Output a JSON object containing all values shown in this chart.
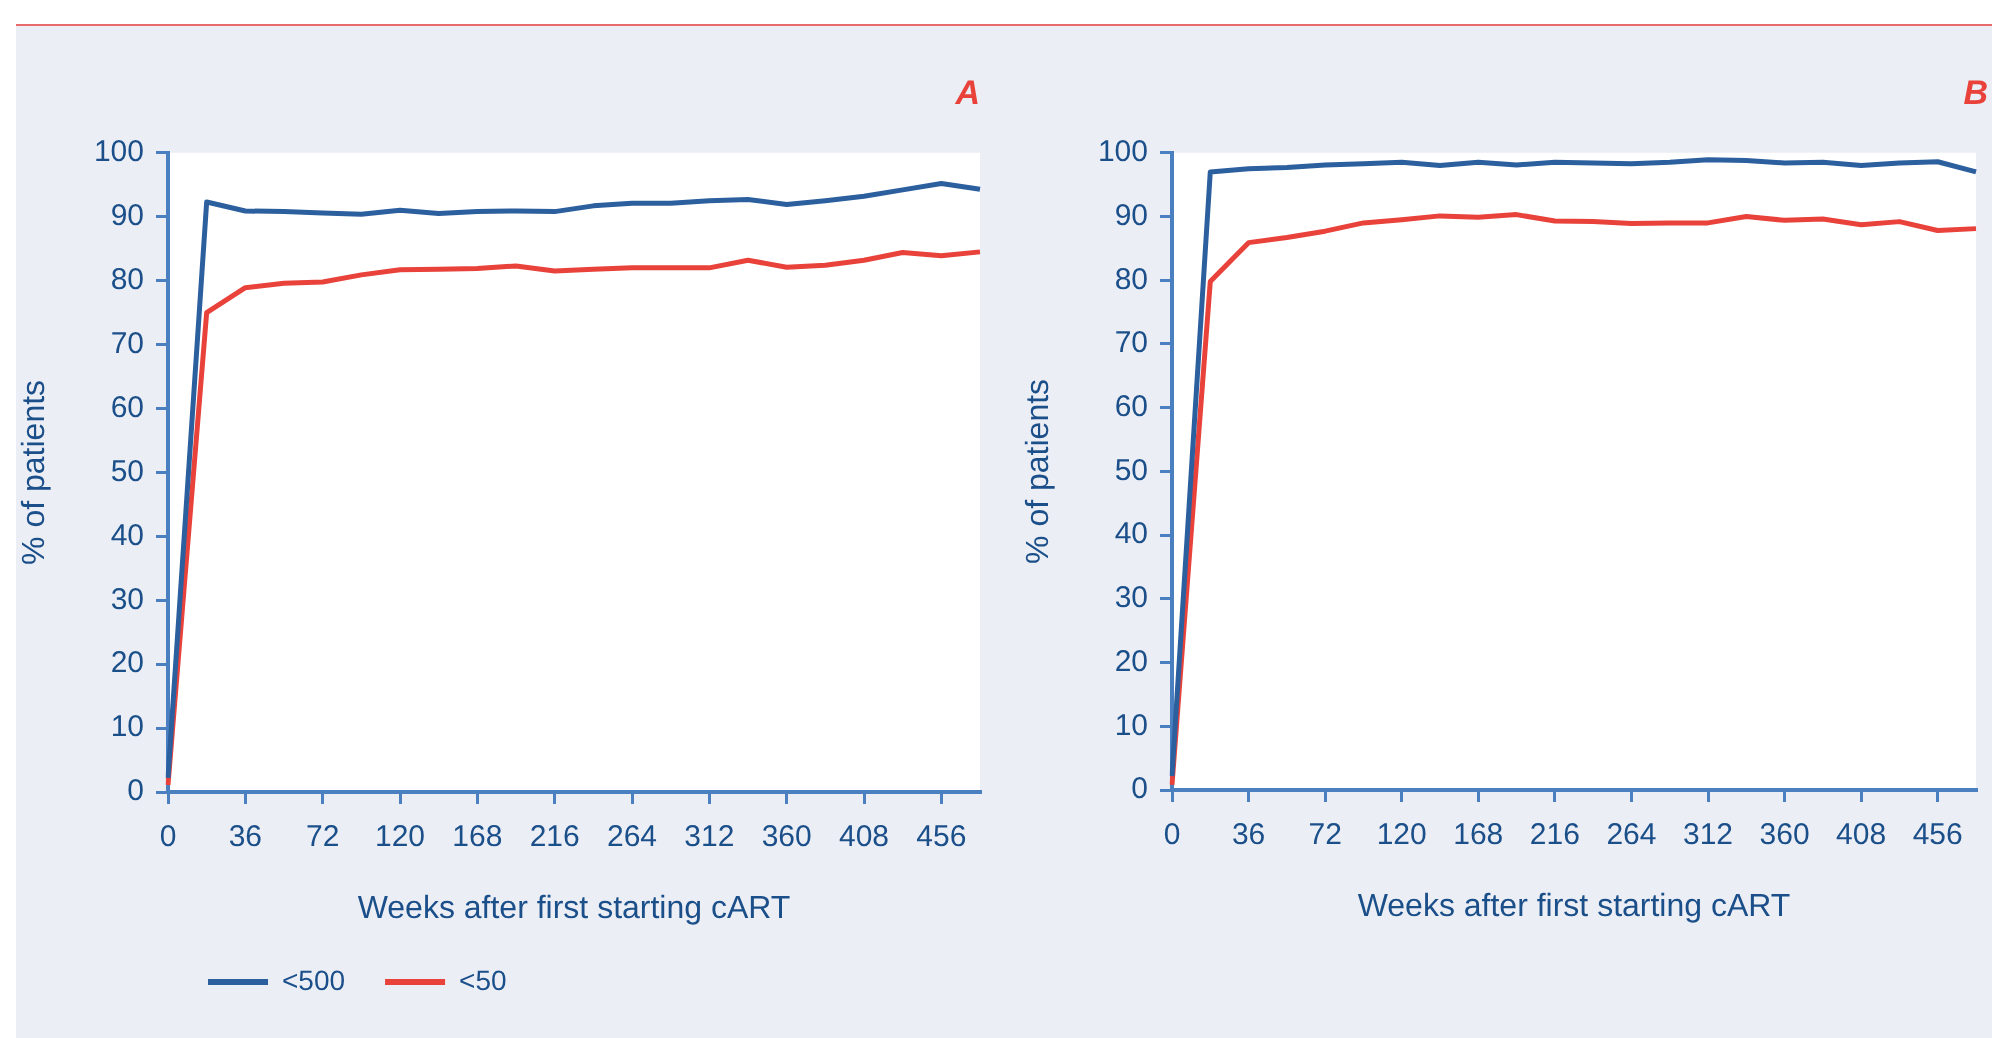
{
  "chart_data": [
    {
      "type": "line",
      "title": "A",
      "xlabel": "Weeks after first starting cART",
      "ylabel": "% of patients",
      "categories": [
        "0",
        null,
        "36",
        null,
        "72",
        null,
        "120",
        null,
        "168",
        null,
        "216",
        null,
        "264",
        null,
        "312",
        null,
        "360",
        null,
        "408",
        null,
        "456",
        null
      ],
      "series": [
        {
          "name": "<500",
          "color": "#2c5f9e",
          "values": [
            2.2,
            92.3,
            90.9,
            90.8,
            90.6,
            90.4,
            91.0,
            90.5,
            90.8,
            90.9,
            90.8,
            91.7,
            92.1,
            92.1,
            92.5,
            92.7,
            91.9,
            92.5,
            93.2,
            94.2,
            95.2,
            94.3
          ]
        },
        {
          "name": "<50",
          "color": "#e8423b",
          "values": [
            1.1,
            75.0,
            78.9,
            79.6,
            79.8,
            80.9,
            81.7,
            81.8,
            81.9,
            82.3,
            81.5,
            81.8,
            82.0,
            82.0,
            82.0,
            83.2,
            82.1,
            82.4,
            83.2,
            84.4,
            83.9,
            84.5
          ]
        }
      ],
      "ylim": [
        0,
        100
      ],
      "yticks": [
        0,
        10,
        20,
        30,
        40,
        50,
        60,
        70,
        80,
        90,
        100
      ],
      "legend": "bottom left",
      "marker": "none"
    },
    {
      "type": "line",
      "title": "B",
      "xlabel": "Weeks after first starting cART",
      "ylabel": "% of patients",
      "categories": [
        "0",
        null,
        "36",
        null,
        "72",
        null,
        "120",
        null,
        "168",
        null,
        "216",
        null,
        "264",
        null,
        "312",
        null,
        "360",
        null,
        "408",
        null,
        "456",
        null
      ],
      "series": [
        {
          "color": "#2c5f9e",
          "values": [
            2.2,
            97.0,
            97.5,
            97.7,
            98.1,
            98.3,
            98.5,
            98.0,
            98.5,
            98.1,
            98.5,
            98.4,
            98.3,
            98.5,
            98.9,
            98.8,
            98.4,
            98.5,
            98.0,
            98.4,
            98.6,
            97.0
          ]
        },
        {
          "color": "#e8423b",
          "values": [
            0.8,
            79.8,
            85.9,
            86.7,
            87.7,
            89.0,
            89.5,
            90.1,
            89.9,
            90.3,
            89.3,
            89.2,
            88.9,
            89.0,
            89.0,
            90.0,
            89.4,
            89.6,
            88.7,
            89.2,
            87.8,
            88.1
          ]
        }
      ],
      "ylim": [
        0,
        100
      ],
      "yticks": [
        0,
        10,
        20,
        30,
        40,
        50,
        60,
        70,
        80,
        90,
        100
      ],
      "marker": "none"
    }
  ]
}
